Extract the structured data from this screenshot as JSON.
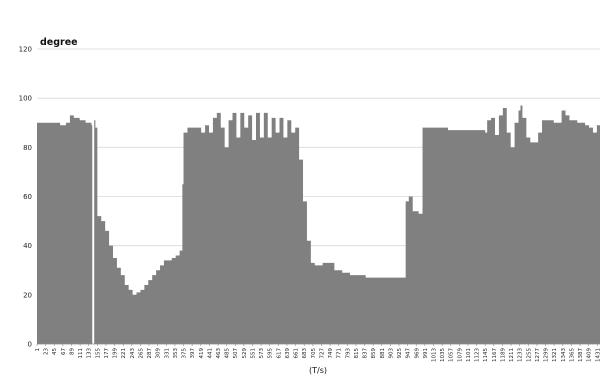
{
  "chart_data": {
    "type": "area",
    "ylabel": "degree",
    "xlabel": "(T/s)",
    "ylim": [
      0,
      120
    ],
    "yticks": [
      0,
      20,
      40,
      60,
      80,
      100,
      120
    ],
    "xlim": [
      1,
      1438
    ],
    "grid": true,
    "fill_color": "#808080",
    "gap_color": "#ffffff",
    "xtick_labels": [
      "1",
      "23",
      "45",
      "67",
      "89",
      "111",
      "133",
      "155",
      "177",
      "199",
      "221",
      "243",
      "265",
      "287",
      "309",
      "331",
      "353",
      "375",
      "397",
      "419",
      "441",
      "463",
      "485",
      "507",
      "529",
      "551",
      "573",
      "595",
      "617",
      "639",
      "661",
      "683",
      "705",
      "727",
      "749",
      "771",
      "793",
      "815",
      "837",
      "859",
      "881",
      "903",
      "925",
      "947",
      "969",
      "991",
      "1013",
      "1035",
      "1057",
      "1079",
      "1101",
      "1123",
      "1145",
      "1167",
      "1189",
      "1211",
      "1233",
      "1255",
      "1277",
      "1299",
      "1321",
      "1343",
      "1365",
      "1387",
      "1409",
      "1431"
    ],
    "gaps": [
      142,
      147
    ],
    "x": [
      1,
      30,
      60,
      75,
      85,
      95,
      110,
      125,
      140,
      146,
      150,
      155,
      165,
      175,
      185,
      195,
      205,
      215,
      225,
      235,
      245,
      255,
      265,
      275,
      285,
      295,
      305,
      315,
      325,
      335,
      345,
      355,
      365,
      372,
      375,
      385,
      400,
      420,
      430,
      440,
      450,
      460,
      470,
      480,
      490,
      500,
      510,
      520,
      530,
      540,
      550,
      560,
      570,
      580,
      590,
      600,
      610,
      620,
      630,
      640,
      650,
      660,
      670,
      680,
      690,
      700,
      710,
      720,
      730,
      740,
      760,
      780,
      800,
      820,
      840,
      860,
      880,
      900,
      920,
      930,
      940,
      942,
      950,
      960,
      975,
      985,
      990,
      1000,
      1050,
      1100,
      1130,
      1135,
      1140,
      1145,
      1150,
      1160,
      1170,
      1180,
      1190,
      1200,
      1210,
      1220,
      1230,
      1235,
      1240,
      1250,
      1260,
      1270,
      1280,
      1290,
      1300,
      1320,
      1340,
      1350,
      1360,
      1380,
      1400,
      1410,
      1420,
      1430,
      1438
    ],
    "y": [
      90,
      90,
      89,
      90,
      93,
      92,
      91,
      90,
      89,
      91,
      88,
      52,
      50,
      46,
      40,
      35,
      31,
      28,
      24,
      22,
      20,
      21,
      22,
      24,
      26,
      28,
      30,
      32,
      34,
      34,
      35,
      36,
      38,
      65,
      86,
      88,
      88,
      86,
      89,
      86,
      92,
      94,
      88,
      80,
      91,
      94,
      84,
      94,
      88,
      93,
      83,
      94,
      84,
      94,
      84,
      92,
      86,
      92,
      84,
      91,
      86,
      88,
      75,
      58,
      42,
      33,
      32,
      32,
      33,
      33,
      30,
      29,
      28,
      28,
      27,
      27,
      27,
      27,
      27,
      27,
      27,
      58,
      60,
      54,
      53,
      88,
      88,
      88,
      87,
      87,
      87,
      87,
      87,
      86,
      91,
      92,
      85,
      93,
      96,
      86,
      80,
      90,
      95,
      97,
      92,
      84,
      82,
      82,
      86,
      91,
      91,
      90,
      95,
      93,
      91,
      90,
      89,
      88,
      86,
      89,
      72
    ]
  }
}
